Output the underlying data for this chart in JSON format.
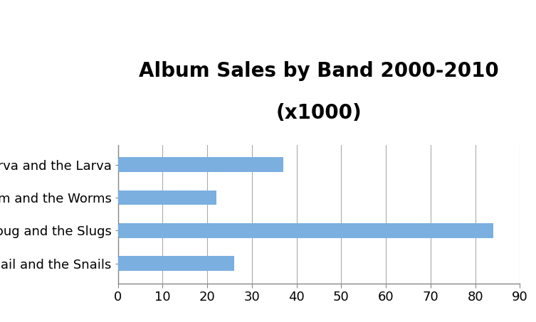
{
  "title_line1": "Album Sales by Band 2000-2010",
  "title_line2": "(x1000)",
  "categories": [
    "Gail and the Snails",
    "Doug and the Slugs",
    "Sherm and the Worms",
    "Marva and the Larva"
  ],
  "values": [
    26,
    84,
    22,
    37
  ],
  "bar_color": "#7aafe0",
  "bar_bottom_color": "#5a8fbf",
  "xlim": [
    0,
    90
  ],
  "xticks": [
    0,
    10,
    20,
    30,
    40,
    50,
    60,
    70,
    80,
    90
  ],
  "title_fontsize": 20,
  "tick_fontsize": 13,
  "label_fontsize": 13,
  "background_color": "#ffffff",
  "grid_color": "#aaaaaa",
  "bar_height": 0.45
}
